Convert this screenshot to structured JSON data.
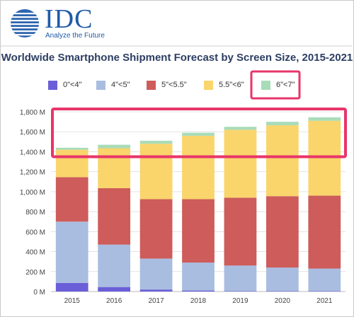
{
  "header": {
    "logo_text": "IDC",
    "tagline": "Analyze the Future"
  },
  "chart_data": {
    "type": "bar",
    "stacked": true,
    "title": "Worldwide Smartphone Shipment Forecast by Screen Size, 2015-2021",
    "categories": [
      "2015",
      "2016",
      "2017",
      "2018",
      "2019",
      "2020",
      "2021"
    ],
    "series": [
      {
        "name": "0\"<4\"",
        "color": "#6a5fd8",
        "values": [
          85,
          45,
          20,
          10,
          5,
          5,
          5
        ]
      },
      {
        "name": "4\"<5\"",
        "color": "#a9bde0",
        "values": [
          615,
          425,
          310,
          280,
          255,
          235,
          225
        ]
      },
      {
        "name": "5\"<5.5\"",
        "color": "#cd5c5a",
        "values": [
          445,
          565,
          595,
          635,
          680,
          715,
          730
        ]
      },
      {
        "name": "5.5\"<6\"",
        "color": "#f9d56c",
        "values": [
          275,
          400,
          555,
          635,
          680,
          710,
          750
        ]
      },
      {
        "name": "6\"<7\"",
        "color": "#a9dcb9",
        "values": [
          20,
          35,
          30,
          30,
          30,
          35,
          35
        ]
      }
    ],
    "yaxis": {
      "min": 0,
      "max": 1800,
      "step": 200,
      "tick_labels": [
        "0 M",
        "200 M",
        "400 M",
        "600 M",
        "800 M",
        "1,000 M",
        "1,200 M",
        "1,400 M",
        "1,600 M",
        "1,800 M"
      ]
    },
    "grid": true,
    "legend_position": "top",
    "highlights": [
      {
        "target": "legend-item",
        "index": 4,
        "color": "#e8356a"
      },
      {
        "target": "y-range",
        "from": 1350,
        "to": 1800,
        "color": "#e8356a"
      }
    ]
  }
}
